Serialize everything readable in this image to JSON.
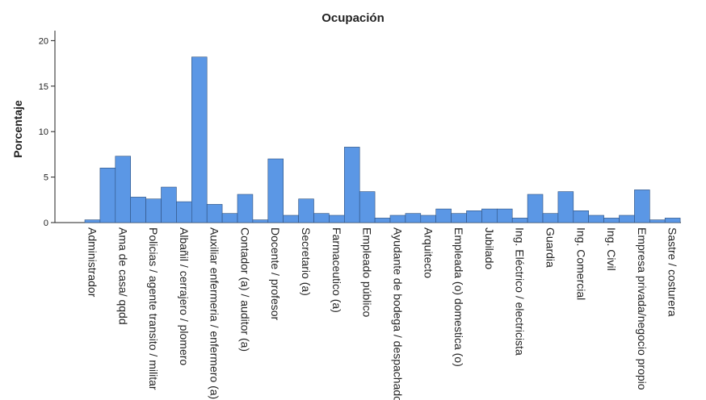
{
  "chart_data": {
    "type": "bar",
    "title": "Ocupación",
    "xlabel": "",
    "ylabel": "Porcentaje",
    "ylim": [
      0,
      21
    ],
    "yticks": [
      0,
      5,
      10,
      15,
      20
    ],
    "grid": false,
    "bar_color": "#5b97e5",
    "bar_edge_color": "#2d4f7c",
    "categories": [
      "Administrador",
      "",
      "Ama de casa/ qqdd",
      "",
      "Policias / agente transito / militar",
      "",
      "Albañil / cerrajero / plomero",
      "",
      "Auxiliar enfermeria / enfermero (a)",
      "",
      "Contador (a) / auditor (a)",
      "",
      "Docente / profesor",
      "",
      "Secretario (a)",
      "",
      "Farmaceutico (a)",
      "",
      "Empleado público",
      "",
      "Ayudante de bodega / despachador",
      "",
      "Arquitecto",
      "",
      "Empleada (o) domestica (o)",
      "",
      "Jubilado",
      "",
      "Ing. Eléctrico / electricista",
      "",
      "Guardia",
      "",
      "Ing. Comercial",
      "",
      "Ing. Civil",
      "",
      "Empresa privada/negocio propio",
      "",
      "Sastre / costurera"
    ],
    "values": [
      0.3,
      6.0,
      7.3,
      2.8,
      2.6,
      3.9,
      2.3,
      18.2,
      2.0,
      1.0,
      3.1,
      0.3,
      7.0,
      0.8,
      2.6,
      1.0,
      0.8,
      8.3,
      3.4,
      0.5,
      0.8,
      1.0,
      0.8,
      1.5,
      1.0,
      1.3,
      1.5,
      1.5,
      0.5,
      3.1,
      1.0,
      3.4,
      1.3,
      0.8,
      0.5,
      0.8,
      3.6,
      0.3,
      0.5
    ]
  }
}
